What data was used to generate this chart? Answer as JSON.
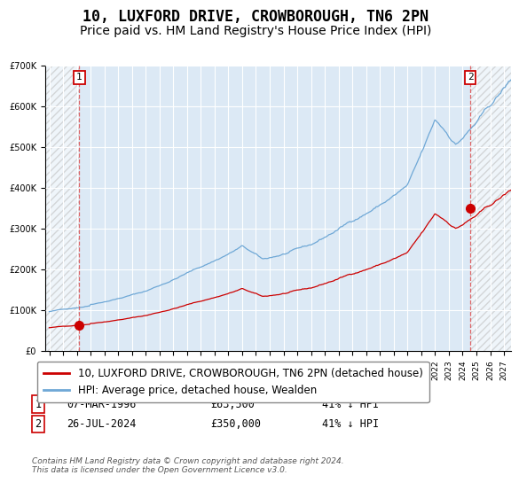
{
  "title": "10, LUXFORD DRIVE, CROWBOROUGH, TN6 2PN",
  "subtitle": "Price paid vs. HM Land Registry's House Price Index (HPI)",
  "ylim": [
    0,
    700000
  ],
  "yticks": [
    0,
    100000,
    200000,
    300000,
    400000,
    500000,
    600000,
    700000
  ],
  "ytick_labels": [
    "£0",
    "£100K",
    "£200K",
    "£300K",
    "£400K",
    "£500K",
    "£600K",
    "£700K"
  ],
  "hpi_color": "#6fa8d6",
  "price_color": "#cc0000",
  "bg_color": "#dce9f5",
  "grid_color": "#ffffff",
  "sale1_year": 1996.18,
  "sale1_price": 63500,
  "sale1_label": "1",
  "sale2_year": 2024.56,
  "sale2_price": 350000,
  "sale2_label": "2",
  "legend_line1": "10, LUXFORD DRIVE, CROWBOROUGH, TN6 2PN (detached house)",
  "legend_line2": "HPI: Average price, detached house, Wealden",
  "table_row1": [
    "1",
    "07-MAR-1996",
    "£63,500",
    "41% ↓ HPI"
  ],
  "table_row2": [
    "2",
    "26-JUL-2024",
    "£350,000",
    "41% ↓ HPI"
  ],
  "footnote": "Contains HM Land Registry data © Crown copyright and database right 2024.\nThis data is licensed under the Open Government Licence v3.0.",
  "xmin": 1993.7,
  "xmax": 2027.5,
  "start_year": 1994,
  "end_year": 2028,
  "title_fontsize": 12,
  "subtitle_fontsize": 10,
  "tick_fontsize": 7,
  "legend_fontsize": 8.5,
  "annot_fontsize": 8
}
